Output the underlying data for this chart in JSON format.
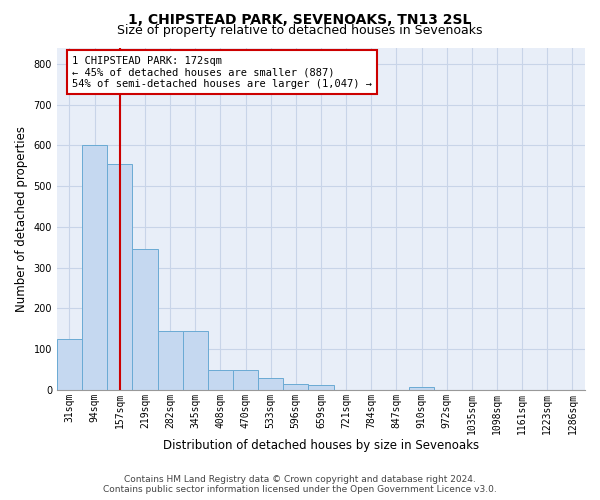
{
  "title": "1, CHIPSTEAD PARK, SEVENOAKS, TN13 2SL",
  "subtitle": "Size of property relative to detached houses in Sevenoaks",
  "xlabel": "Distribution of detached houses by size in Sevenoaks",
  "ylabel": "Number of detached properties",
  "categories": [
    "31sqm",
    "94sqm",
    "157sqm",
    "219sqm",
    "282sqm",
    "345sqm",
    "408sqm",
    "470sqm",
    "533sqm",
    "596sqm",
    "659sqm",
    "721sqm",
    "784sqm",
    "847sqm",
    "910sqm",
    "972sqm",
    "1035sqm",
    "1098sqm",
    "1161sqm",
    "1223sqm",
    "1286sqm"
  ],
  "values": [
    125,
    600,
    555,
    345,
    145,
    145,
    50,
    50,
    30,
    15,
    12,
    0,
    0,
    0,
    7,
    0,
    0,
    0,
    0,
    0,
    0
  ],
  "bar_color": "#c5d8f0",
  "bar_edge_color": "#6aaad4",
  "red_line_index": 2,
  "annotation_lines": [
    "1 CHIPSTEAD PARK: 172sqm",
    "← 45% of detached houses are smaller (887)",
    "54% of semi-detached houses are larger (1,047) →"
  ],
  "annotation_box_color": "#ffffff",
  "annotation_box_edge_color": "#cc0000",
  "ylim": [
    0,
    840
  ],
  "yticks": [
    0,
    100,
    200,
    300,
    400,
    500,
    600,
    700,
    800
  ],
  "grid_color": "#c8d4e8",
  "background_color": "#e8eef8",
  "footer_line1": "Contains HM Land Registry data © Crown copyright and database right 2024.",
  "footer_line2": "Contains public sector information licensed under the Open Government Licence v3.0.",
  "title_fontsize": 10,
  "subtitle_fontsize": 9,
  "axis_label_fontsize": 8.5,
  "tick_fontsize": 7,
  "annotation_fontsize": 7.5,
  "footer_fontsize": 6.5
}
